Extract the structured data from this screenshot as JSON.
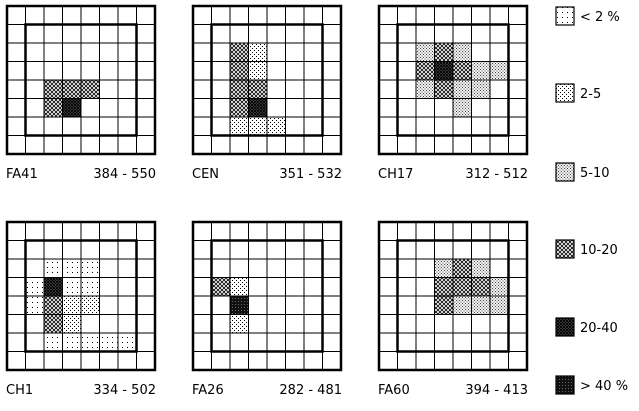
{
  "panels": [
    {
      "id": "FA41",
      "label": "FA41",
      "range": "384 - 550",
      "cells": [
        {
          "row": 4,
          "col": 2,
          "level": 3
        },
        {
          "row": 4,
          "col": 3,
          "level": 3
        },
        {
          "row": 4,
          "col": 4,
          "level": 3
        },
        {
          "row": 5,
          "col": 2,
          "level": 3
        },
        {
          "row": 5,
          "col": 3,
          "level": 4
        }
      ]
    },
    {
      "id": "CEN",
      "label": "CEN",
      "range": "351 - 532",
      "cells": [
        {
          "row": 2,
          "col": 2,
          "level": 3
        },
        {
          "row": 2,
          "col": 3,
          "level": 1
        },
        {
          "row": 3,
          "col": 2,
          "level": 3
        },
        {
          "row": 3,
          "col": 3,
          "level": 1
        },
        {
          "row": 4,
          "col": 2,
          "level": 3
        },
        {
          "row": 4,
          "col": 3,
          "level": 3
        },
        {
          "row": 5,
          "col": 2,
          "level": 3
        },
        {
          "row": 5,
          "col": 3,
          "level": 4
        },
        {
          "row": 6,
          "col": 2,
          "level": 1
        },
        {
          "row": 6,
          "col": 3,
          "level": 1
        },
        {
          "row": 6,
          "col": 4,
          "level": 1
        }
      ]
    },
    {
      "id": "CH17",
      "label": "CH17",
      "range": "312 - 512",
      "cells": [
        {
          "row": 2,
          "col": 2,
          "level": 2
        },
        {
          "row": 2,
          "col": 3,
          "level": 3
        },
        {
          "row": 2,
          "col": 4,
          "level": 2
        },
        {
          "row": 3,
          "col": 2,
          "level": 3
        },
        {
          "row": 3,
          "col": 3,
          "level": 4
        },
        {
          "row": 3,
          "col": 4,
          "level": 3
        },
        {
          "row": 3,
          "col": 5,
          "level": 2
        },
        {
          "row": 3,
          "col": 6,
          "level": 2
        },
        {
          "row": 4,
          "col": 2,
          "level": 2
        },
        {
          "row": 4,
          "col": 3,
          "level": 3
        },
        {
          "row": 4,
          "col": 4,
          "level": 2
        },
        {
          "row": 4,
          "col": 5,
          "level": 2
        },
        {
          "row": 5,
          "col": 4,
          "level": 2
        }
      ]
    },
    {
      "id": "CH1",
      "label": "CH1",
      "range": "334 - 502",
      "cells": [
        {
          "row": 2,
          "col": 2,
          "level": 0
        },
        {
          "row": 2,
          "col": 3,
          "level": 0
        },
        {
          "row": 2,
          "col": 4,
          "level": 0
        },
        {
          "row": 3,
          "col": 1,
          "level": 0
        },
        {
          "row": 3,
          "col": 2,
          "level": 4
        },
        {
          "row": 3,
          "col": 3,
          "level": 0
        },
        {
          "row": 3,
          "col": 4,
          "level": 0
        },
        {
          "row": 4,
          "col": 1,
          "level": 0
        },
        {
          "row": 4,
          "col": 2,
          "level": 3
        },
        {
          "row": 4,
          "col": 3,
          "level": 1
        },
        {
          "row": 4,
          "col": 4,
          "level": 1
        },
        {
          "row": 5,
          "col": 2,
          "level": 3
        },
        {
          "row": 5,
          "col": 3,
          "level": 1
        },
        {
          "row": 6,
          "col": 2,
          "level": 0
        },
        {
          "row": 6,
          "col": 3,
          "level": 0
        },
        {
          "row": 6,
          "col": 4,
          "level": 0
        },
        {
          "row": 6,
          "col": 5,
          "level": 0
        },
        {
          "row": 6,
          "col": 6,
          "level": 0
        }
      ]
    },
    {
      "id": "FA26",
      "label": "FA26",
      "range": "282 - 481",
      "cells": [
        {
          "row": 3,
          "col": 1,
          "level": 3
        },
        {
          "row": 3,
          "col": 2,
          "level": 1
        },
        {
          "row": 4,
          "col": 2,
          "level": 5
        },
        {
          "row": 5,
          "col": 2,
          "level": 1
        }
      ]
    },
    {
      "id": "FA60",
      "label": "FA60",
      "range": "394 - 413",
      "cells": [
        {
          "row": 2,
          "col": 3,
          "level": 2
        },
        {
          "row": 2,
          "col": 4,
          "level": 3
        },
        {
          "row": 2,
          "col": 5,
          "level": 2
        },
        {
          "row": 3,
          "col": 3,
          "level": 3
        },
        {
          "row": 3,
          "col": 4,
          "level": 3
        },
        {
          "row": 3,
          "col": 5,
          "level": 3
        },
        {
          "row": 3,
          "col": 6,
          "level": 2
        },
        {
          "row": 4,
          "col": 3,
          "level": 3
        },
        {
          "row": 4,
          "col": 4,
          "level": 2
        },
        {
          "row": 4,
          "col": 5,
          "level": 2
        },
        {
          "row": 4,
          "col": 6,
          "level": 2
        }
      ]
    }
  ],
  "legend": [
    {
      "label": "< 2 %",
      "level": 0
    },
    {
      "label": "2-5",
      "level": 1
    },
    {
      "label": "5-10",
      "level": 2
    },
    {
      "label": "10-20",
      "level": 3
    },
    {
      "label": "20-40",
      "level": 4
    },
    {
      "label": "> 40 %",
      "level": 5
    }
  ]
}
